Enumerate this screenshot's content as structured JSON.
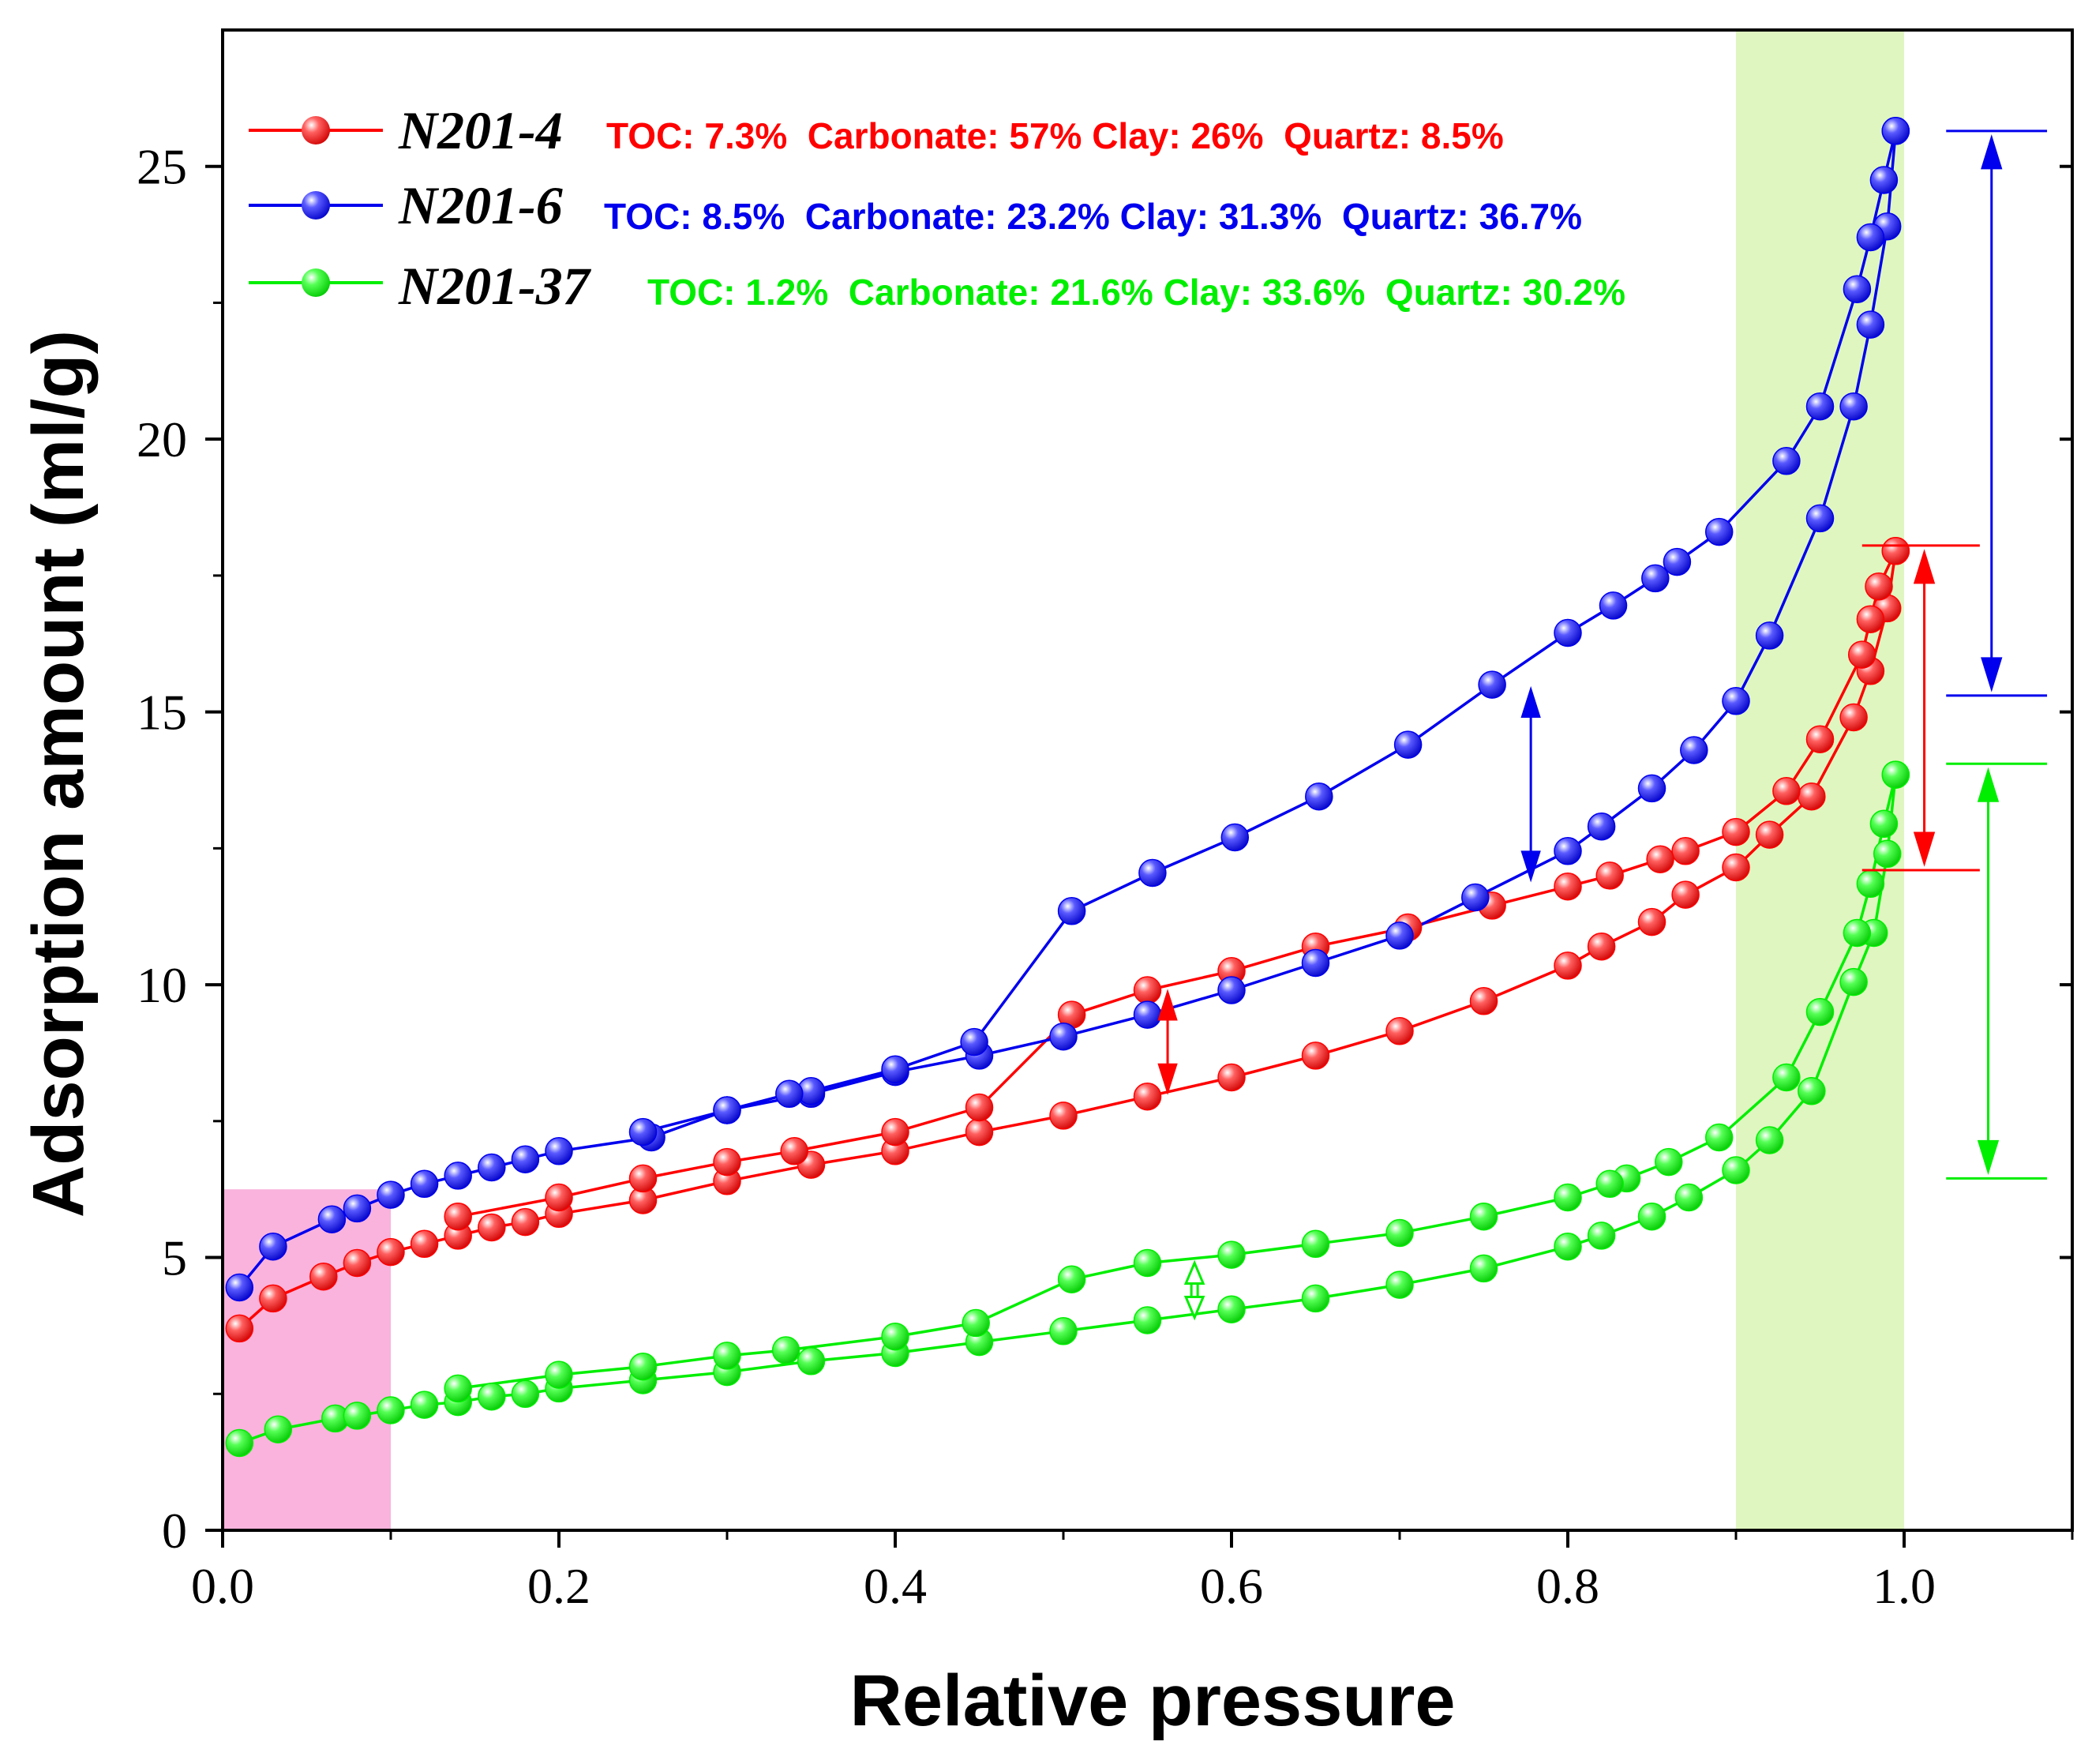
{
  "chart_data": {
    "type": "line",
    "title": "",
    "xlabel": "Relative pressure",
    "ylabel": "Adsorption amount (ml/g)",
    "xlim": [
      0.0,
      1.1
    ],
    "ylim": [
      0,
      27.5
    ],
    "xticks": [
      0.0,
      0.2,
      0.4,
      0.6,
      0.8,
      1.0
    ],
    "xtick_labels": [
      "0.0",
      "0.2",
      "0.4",
      "0.6",
      "0.8",
      "1.0"
    ],
    "yticks": [
      0,
      5,
      10,
      15,
      20,
      25
    ],
    "ytick_labels": [
      "0",
      "5",
      "10",
      "15",
      "20",
      "25"
    ],
    "shaded_regions": [
      {
        "x0": 0.0,
        "x1": 0.1,
        "y0": 0,
        "y1": 6.25,
        "color": "#f9b3dc"
      },
      {
        "x0": 0.9,
        "x1": 1.0,
        "y0": 0,
        "y1": 27.5,
        "color": "#dff6c0"
      }
    ],
    "series": [
      {
        "name": "N201-4",
        "info": "TOC: 7.3%  Carbonate: 57% Clay: 26%  Quartz: 8.5%",
        "color": "#ff0000",
        "light": "#ffb0b0",
        "adsorption": [
          [
            0.01,
            3.7
          ],
          [
            0.03,
            4.25
          ],
          [
            0.06,
            4.65
          ],
          [
            0.08,
            4.9
          ],
          [
            0.1,
            5.1
          ],
          [
            0.12,
            5.25
          ],
          [
            0.14,
            5.4
          ],
          [
            0.16,
            5.55
          ],
          [
            0.18,
            5.65
          ],
          [
            0.2,
            5.8
          ],
          [
            0.25,
            6.05
          ],
          [
            0.3,
            6.4
          ],
          [
            0.35,
            6.7
          ],
          [
            0.4,
            6.95
          ],
          [
            0.45,
            7.3
          ],
          [
            0.5,
            7.6
          ],
          [
            0.55,
            7.95
          ],
          [
            0.6,
            8.3
          ],
          [
            0.65,
            8.7
          ],
          [
            0.7,
            9.15
          ],
          [
            0.75,
            9.7
          ],
          [
            0.8,
            10.35
          ],
          [
            0.82,
            10.7
          ],
          [
            0.85,
            11.15
          ],
          [
            0.87,
            11.65
          ],
          [
            0.9,
            12.15
          ],
          [
            0.92,
            12.75
          ],
          [
            0.945,
            13.45
          ],
          [
            0.97,
            14.9
          ],
          [
            0.98,
            15.75
          ],
          [
            0.99,
            16.9
          ],
          [
            0.995,
            17.95
          ]
        ],
        "desorption": [
          [
            0.995,
            17.95
          ],
          [
            0.985,
            17.3
          ],
          [
            0.98,
            16.7
          ],
          [
            0.975,
            16.05
          ],
          [
            0.95,
            14.5
          ],
          [
            0.93,
            13.55
          ],
          [
            0.9,
            12.8
          ],
          [
            0.87,
            12.45
          ],
          [
            0.855,
            12.3
          ],
          [
            0.825,
            12.0
          ],
          [
            0.8,
            11.8
          ],
          [
            0.755,
            11.45
          ],
          [
            0.705,
            11.05
          ],
          [
            0.65,
            10.7
          ],
          [
            0.6,
            10.25
          ],
          [
            0.55,
            9.9
          ],
          [
            0.505,
            9.45
          ],
          [
            0.45,
            7.75
          ],
          [
            0.4,
            7.3
          ],
          [
            0.34,
            6.95
          ],
          [
            0.3,
            6.75
          ],
          [
            0.25,
            6.45
          ],
          [
            0.2,
            6.1
          ],
          [
            0.14,
            5.75
          ]
        ]
      },
      {
        "name": "N201-6",
        "info": "TOC: 8.5%  Carbonate: 23.2% Clay: 31.3%  Quartz: 36.7%",
        "color": "#0000ee",
        "light": "#b0b0ff",
        "adsorption": [
          [
            0.01,
            4.45
          ],
          [
            0.03,
            5.2
          ],
          [
            0.065,
            5.7
          ],
          [
            0.08,
            5.9
          ],
          [
            0.1,
            6.15
          ],
          [
            0.12,
            6.35
          ],
          [
            0.14,
            6.5
          ],
          [
            0.16,
            6.65
          ],
          [
            0.18,
            6.8
          ],
          [
            0.2,
            6.95
          ],
          [
            0.255,
            7.2
          ],
          [
            0.3,
            7.7
          ],
          [
            0.35,
            8.0
          ],
          [
            0.4,
            8.4
          ],
          [
            0.45,
            8.7
          ],
          [
            0.5,
            9.05
          ],
          [
            0.55,
            9.45
          ],
          [
            0.6,
            9.9
          ],
          [
            0.65,
            10.4
          ],
          [
            0.7,
            10.9
          ],
          [
            0.745,
            11.6
          ],
          [
            0.8,
            12.45
          ],
          [
            0.82,
            12.9
          ],
          [
            0.85,
            13.6
          ],
          [
            0.875,
            14.3
          ],
          [
            0.9,
            15.2
          ],
          [
            0.92,
            16.4
          ],
          [
            0.95,
            18.55
          ],
          [
            0.97,
            20.6
          ],
          [
            0.98,
            22.1
          ],
          [
            0.99,
            23.9
          ],
          [
            0.995,
            25.65
          ]
        ],
        "desorption": [
          [
            0.995,
            25.65
          ],
          [
            0.988,
            24.75
          ],
          [
            0.98,
            23.7
          ],
          [
            0.972,
            22.75
          ],
          [
            0.95,
            20.6
          ],
          [
            0.93,
            19.6
          ],
          [
            0.89,
            18.3
          ],
          [
            0.865,
            17.75
          ],
          [
            0.852,
            17.45
          ],
          [
            0.827,
            16.95
          ],
          [
            0.8,
            16.45
          ],
          [
            0.755,
            15.5
          ],
          [
            0.705,
            14.4
          ],
          [
            0.652,
            13.45
          ],
          [
            0.602,
            12.7
          ],
          [
            0.553,
            12.05
          ],
          [
            0.505,
            11.35
          ],
          [
            0.447,
            8.95
          ],
          [
            0.4,
            8.45
          ],
          [
            0.35,
            8.05
          ],
          [
            0.337,
            8.0
          ],
          [
            0.3,
            7.7
          ],
          [
            0.25,
            7.3
          ]
        ]
      },
      {
        "name": "N201-37",
        "info": "TOC: 1.2%  Carbonate: 21.6% Clay: 33.6%  Quartz: 30.2%",
        "color": "#00ee00",
        "light": "#b8ffb8",
        "adsorption": [
          [
            0.01,
            1.6
          ],
          [
            0.033,
            1.85
          ],
          [
            0.067,
            2.05
          ],
          [
            0.08,
            2.1
          ],
          [
            0.1,
            2.2
          ],
          [
            0.12,
            2.3
          ],
          [
            0.14,
            2.35
          ],
          [
            0.16,
            2.45
          ],
          [
            0.18,
            2.5
          ],
          [
            0.2,
            2.6
          ],
          [
            0.25,
            2.75
          ],
          [
            0.3,
            2.9
          ],
          [
            0.35,
            3.1
          ],
          [
            0.4,
            3.25
          ],
          [
            0.45,
            3.45
          ],
          [
            0.5,
            3.65
          ],
          [
            0.55,
            3.85
          ],
          [
            0.6,
            4.05
          ],
          [
            0.65,
            4.25
          ],
          [
            0.7,
            4.5
          ],
          [
            0.75,
            4.8
          ],
          [
            0.8,
            5.2
          ],
          [
            0.82,
            5.4
          ],
          [
            0.85,
            5.75
          ],
          [
            0.872,
            6.1
          ],
          [
            0.9,
            6.6
          ],
          [
            0.92,
            7.15
          ],
          [
            0.945,
            8.05
          ],
          [
            0.97,
            10.05
          ],
          [
            0.982,
            10.95
          ],
          [
            0.99,
            12.4
          ],
          [
            0.995,
            13.85
          ]
        ],
        "desorption": [
          [
            0.995,
            13.85
          ],
          [
            0.988,
            12.95
          ],
          [
            0.98,
            11.85
          ],
          [
            0.972,
            10.95
          ],
          [
            0.95,
            9.5
          ],
          [
            0.93,
            8.3
          ],
          [
            0.89,
            7.2
          ],
          [
            0.86,
            6.75
          ],
          [
            0.835,
            6.45
          ],
          [
            0.825,
            6.35
          ],
          [
            0.8,
            6.1
          ],
          [
            0.75,
            5.75
          ],
          [
            0.7,
            5.45
          ],
          [
            0.65,
            5.25
          ],
          [
            0.6,
            5.05
          ],
          [
            0.55,
            4.9
          ],
          [
            0.505,
            4.6
          ],
          [
            0.448,
            3.8
          ],
          [
            0.4,
            3.55
          ],
          [
            0.335,
            3.3
          ],
          [
            0.3,
            3.2
          ],
          [
            0.25,
            3.0
          ],
          [
            0.2,
            2.85
          ],
          [
            0.14,
            2.6
          ]
        ]
      }
    ],
    "annotations": [
      {
        "type": "double-arrow",
        "color": "#0000ee",
        "x": 0.778,
        "y_top": 15.45,
        "y_bottom": 11.9
      },
      {
        "type": "double-arrow",
        "color": "#ff0000",
        "x": 0.562,
        "y_top": 9.9,
        "y_bottom": 8.0
      },
      {
        "type": "hollow-double-arrow",
        "color": "#00ee00",
        "x": 0.578,
        "y_top": 4.9,
        "y_bottom": 3.9
      },
      {
        "type": "range-arrow",
        "color": "#0000ee",
        "x": 1.052,
        "y_top": 25.65,
        "y_bottom": 15.3,
        "x0": 1.025,
        "x1": 1.085
      },
      {
        "type": "range-arrow",
        "color": "#ff0000",
        "x": 1.012,
        "y_top": 18.05,
        "y_bottom": 12.1,
        "x0": 0.975,
        "x1": 1.045
      },
      {
        "type": "range-arrow",
        "color": "#00ee00",
        "x": 1.05,
        "y_top": 14.05,
        "y_bottom": 6.45,
        "x0": 1.025,
        "x1": 1.085
      }
    ]
  }
}
